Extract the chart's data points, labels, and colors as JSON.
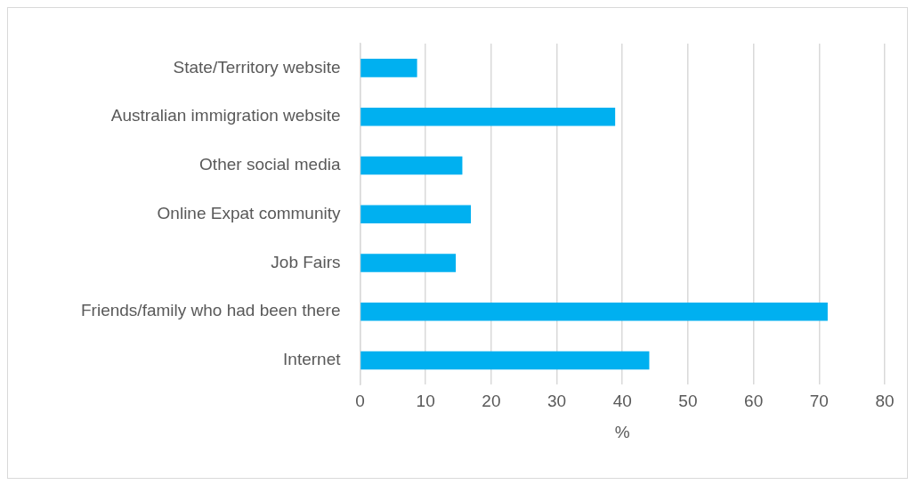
{
  "chart_data": {
    "type": "bar",
    "orientation": "horizontal",
    "xlabel": "%",
    "categories": [
      "State/Territory website",
      "Australian immigration website",
      "Other social media",
      "Online Expat community",
      "Job Fairs",
      "Friends/family who had been there",
      "Internet"
    ],
    "values": [
      8.7,
      38.9,
      15.6,
      16.9,
      14.6,
      71.3,
      44.1
    ],
    "color": "#00b0f0",
    "xlim": [
      0,
      80
    ],
    "xticks": [
      0,
      10,
      20,
      30,
      40,
      50,
      60,
      70,
      80
    ],
    "grid": "x",
    "legend": false
  }
}
